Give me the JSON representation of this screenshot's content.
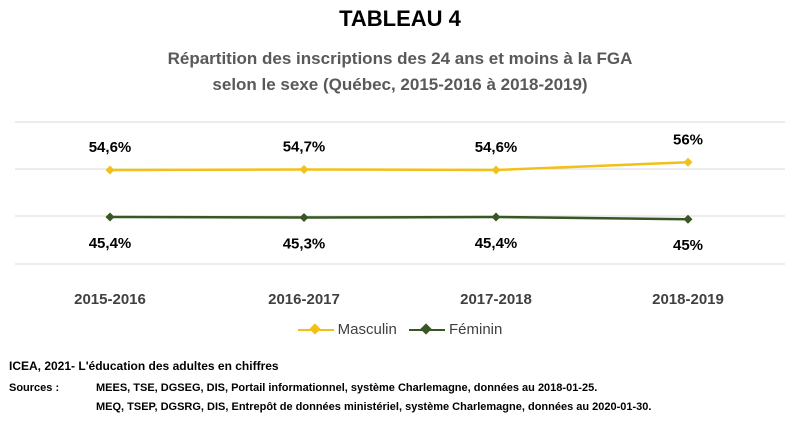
{
  "header": {
    "title": "TABLEAU 4",
    "subtitle_line1": "Répartition des inscriptions des 24 ans et moins à la FGA",
    "subtitle_line2": "selon le sexe (Québec, 2015-2016 à 2018-2019)"
  },
  "chart_data": {
    "type": "line",
    "categories": [
      "2015-2016",
      "2016-2017",
      "2017-2018",
      "2018-2019"
    ],
    "series": [
      {
        "name": "Masculin",
        "values": [
          54.6,
          54.7,
          54.6,
          56
        ],
        "labels": [
          "54,6%",
          "54,7%",
          "54,6%",
          "56%"
        ],
        "color": "#F2C118"
      },
      {
        "name": "Féminin",
        "values": [
          45.4,
          45.3,
          45.4,
          45
        ],
        "labels": [
          "45,4%",
          "45,3%",
          "45,4%",
          "45%"
        ],
        "color": "#385723"
      }
    ],
    "grid": true,
    "legend": "bottom",
    "marker": "diamond",
    "data_labels": true
  },
  "footer": {
    "source_title": "ICEA, 2021- L'éducation des adultes en chiffres",
    "sources_label": "Sources :",
    "sources_lines": [
      "MEES, TSE, DGSEG, DIS, Portail informationnel, système Charlemagne, données au 2018-01-25.",
      "MEQ, TSEP, DGSRG, DIS, Entrepôt de données ministériel, système Charlemagne, données au 2020-01-30."
    ]
  }
}
